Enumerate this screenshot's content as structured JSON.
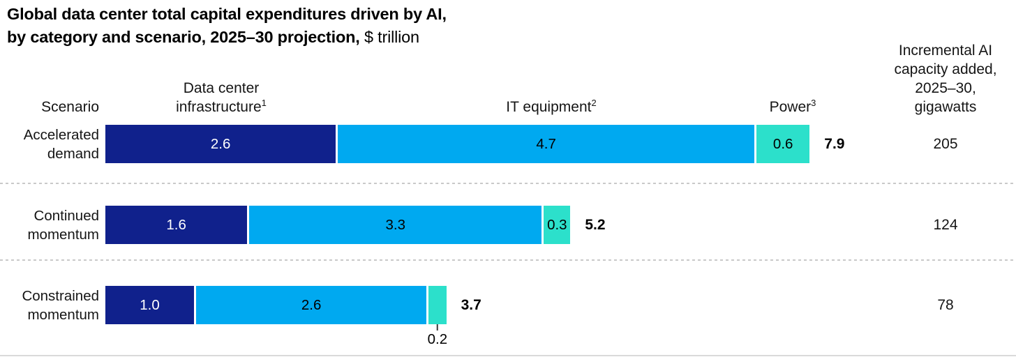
{
  "title": {
    "line1": "Global data center total capital expenditures driven by AI,",
    "line2_bold": "by category and scenario, 2025–30 projection,",
    "line2_unit": " $ trillion"
  },
  "columns": {
    "scenario": "Scenario",
    "infra_line1": "Data center",
    "infra_line2": "infrastructure",
    "infra_sup": "1",
    "it_label": "IT equipment",
    "it_sup": "2",
    "power_label": "Power",
    "power_sup": "3",
    "capacity_line1": "Incremental AI",
    "capacity_line2": "capacity added,",
    "capacity_line3": "2025–30,",
    "capacity_line4": "gigawatts"
  },
  "rows": [
    {
      "label_line1": "Accelerated",
      "label_line2": "demand"
    },
    {
      "label_line1": "Continued",
      "label_line2": "momentum"
    },
    {
      "label_line1": "Constrained",
      "label_line2": "momentum"
    }
  ],
  "chart_data": {
    "type": "bar",
    "orientation": "horizontal",
    "stacked": true,
    "title": "Global data center total capital expenditures driven by AI, by category and scenario, 2025–30 projection",
    "unit": "$ trillion",
    "categories": [
      "Accelerated demand",
      "Continued momentum",
      "Constrained momentum"
    ],
    "series": [
      {
        "name": "Data center infrastructure",
        "color": "#10218c",
        "values": [
          2.6,
          1.6,
          1.0
        ],
        "labels": [
          "2.6",
          "1.6",
          "1.0"
        ]
      },
      {
        "name": "IT equipment",
        "color": "#00a9f0",
        "values": [
          4.7,
          3.3,
          2.6
        ],
        "labels": [
          "4.7",
          "3.3",
          "2.6"
        ]
      },
      {
        "name": "Power",
        "color": "#2ce0cb",
        "values": [
          0.6,
          0.3,
          0.2
        ],
        "labels": [
          "0.6",
          "0.3",
          "0.2"
        ]
      }
    ],
    "totals": [
      7.9,
      5.2,
      3.7
    ],
    "totals_labels": [
      "7.9",
      "5.2",
      "3.7"
    ],
    "gigawatts_column_label": "Incremental AI capacity added, 2025–30, gigawatts",
    "gigawatts": [
      205,
      124,
      78
    ],
    "xlim": [
      0,
      7.9
    ],
    "grid": false,
    "legend_position": "column-headers"
  }
}
